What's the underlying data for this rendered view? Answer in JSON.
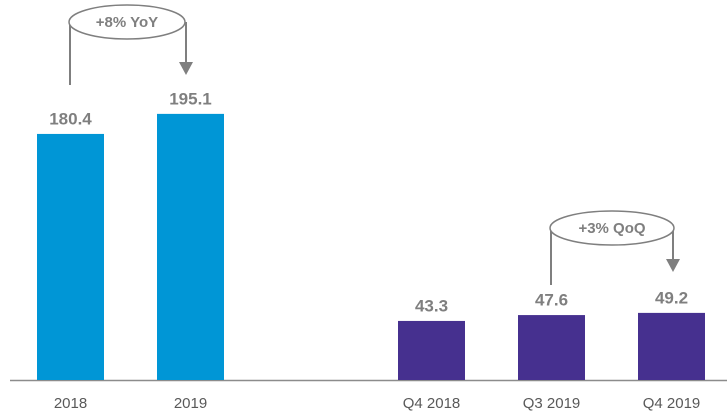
{
  "chart_data": [
    {
      "type": "bar",
      "categories": [
        "2018",
        "2019"
      ],
      "values": [
        180.4,
        195.1
      ],
      "color": "#0096d6",
      "annotation": "+8% YoY"
    },
    {
      "type": "bar",
      "categories": [
        "Q4 2018",
        "Q3 2019",
        "Q4 2019"
      ],
      "values": [
        43.3,
        47.6,
        49.2
      ],
      "color": "#46308f",
      "annotation": "+3% QoQ"
    }
  ]
}
